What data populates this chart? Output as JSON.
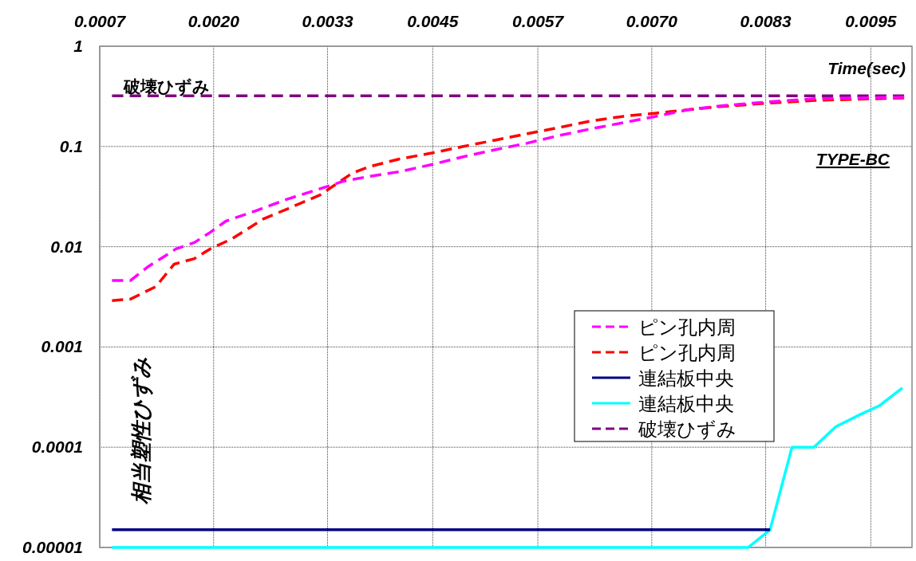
{
  "chart_data": {
    "type": "line",
    "xlabel": "Time(sec)",
    "ylabel": "相当塑性ひずみ",
    "annotations": [
      "TYPE-BC",
      {
        "text": "破壊ひずみ",
        "x": 0.00097,
        "y": 0.32
      }
    ],
    "xlim": [
      0.0007,
      0.00997
    ],
    "xticks": [
      0.0007,
      {
        "value": 0.002,
        "label": "0.0020"
      },
      0.0033,
      0.0045,
      0.0057,
      {
        "value": 0.007,
        "label": "0.0070"
      },
      0.0083,
      0.0095
    ],
    "ylim": [
      1e-05,
      1
    ],
    "yticks": [
      1,
      0.1,
      0.01,
      0.001,
      0.0001,
      {
        "value": 1e-05,
        "label": "0.00001"
      }
    ],
    "log": "y",
    "grid": true,
    "legend": "bottom right",
    "marker": "none",
    "series": [
      {
        "name": "ピン孔内周",
        "color": "#ff00ff",
        "line_style": "dashed",
        "x": [
          0.00084,
          0.00105,
          0.00125,
          0.00157,
          0.00178,
          0.00196,
          0.00214,
          0.00248,
          0.00285,
          0.00322,
          0.00348,
          0.00376,
          0.00412,
          0.00449,
          0.00485,
          0.00522,
          0.00558,
          0.00595,
          0.00631,
          0.00668,
          0.00705,
          0.00741,
          0.00778,
          0.00832,
          0.00887,
          0.00988
        ],
        "values": [
          0.0046,
          0.0046,
          0.0063,
          0.0095,
          0.011,
          0.0139,
          0.018,
          0.0228,
          0.03,
          0.038,
          0.045,
          0.05,
          0.056,
          0.066,
          0.079,
          0.093,
          0.108,
          0.129,
          0.15,
          0.173,
          0.2,
          0.232,
          0.254,
          0.278,
          0.3,
          0.31
        ]
      },
      {
        "name": "ピン孔内周",
        "color": "#ff0000",
        "line_style": "dashed",
        "x": [
          0.00084,
          0.00105,
          0.00134,
          0.00155,
          0.00178,
          0.00196,
          0.00221,
          0.00257,
          0.00285,
          0.00322,
          0.00358,
          0.00378,
          0.00412,
          0.00449,
          0.00485,
          0.00522,
          0.00558,
          0.00595,
          0.00631,
          0.00668,
          0.00705,
          0.00741,
          0.00778,
          0.00832,
          0.00887,
          0.00988
        ],
        "values": [
          0.0029,
          0.003,
          0.004,
          0.0067,
          0.0076,
          0.0095,
          0.012,
          0.019,
          0.024,
          0.033,
          0.054,
          0.063,
          0.075,
          0.086,
          0.1,
          0.116,
          0.134,
          0.155,
          0.18,
          0.2,
          0.215,
          0.232,
          0.25,
          0.27,
          0.288,
          0.305
        ]
      },
      {
        "name": "連結板中央",
        "color": "#000080",
        "line_style": "solid",
        "x": [
          0.00084,
          0.00835
        ],
        "values": [
          1.5e-05,
          1.5e-05
        ]
      },
      {
        "name": "連結板中央",
        "color": "#00ffff",
        "line_style": "solid",
        "x": [
          0.00084,
          0.0081,
          0.00835,
          0.0086,
          0.00885,
          0.0091,
          0.00937,
          0.0096,
          0.00986
        ],
        "values": [
          1e-05,
          1e-05,
          1.5e-05,
          0.0001,
          0.0001,
          0.00016,
          0.00021,
          0.00026,
          0.00039
        ]
      },
      {
        "name": "破壊ひずみ",
        "color": "#800080",
        "line_style": "dashed",
        "x": [
          0.00084,
          0.00988
        ],
        "values": [
          0.32,
          0.32
        ]
      }
    ]
  }
}
